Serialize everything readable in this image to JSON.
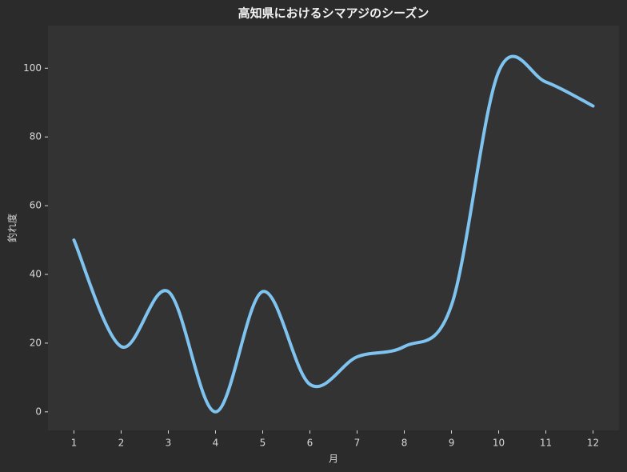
{
  "chart_data": {
    "type": "line",
    "title": "高知県におけるシマアジのシーズン",
    "x_label": "月",
    "y_label": "釣れ度",
    "x": [
      1,
      2,
      3,
      4,
      5,
      6,
      7,
      8,
      9,
      10,
      11,
      12
    ],
    "values": [
      50,
      19,
      35,
      0,
      35,
      8,
      16,
      19,
      31,
      99,
      96,
      89
    ],
    "color": "#7fc4f0",
    "xlim": [
      0.45,
      12.55
    ],
    "xticks": [
      1,
      2,
      3,
      4,
      5,
      6,
      7,
      8,
      9,
      10,
      11,
      12
    ],
    "ylim": [
      -5.4,
      112.4
    ],
    "yticks": [
      0,
      20,
      40,
      60,
      80,
      100
    ],
    "grid": false
  }
}
